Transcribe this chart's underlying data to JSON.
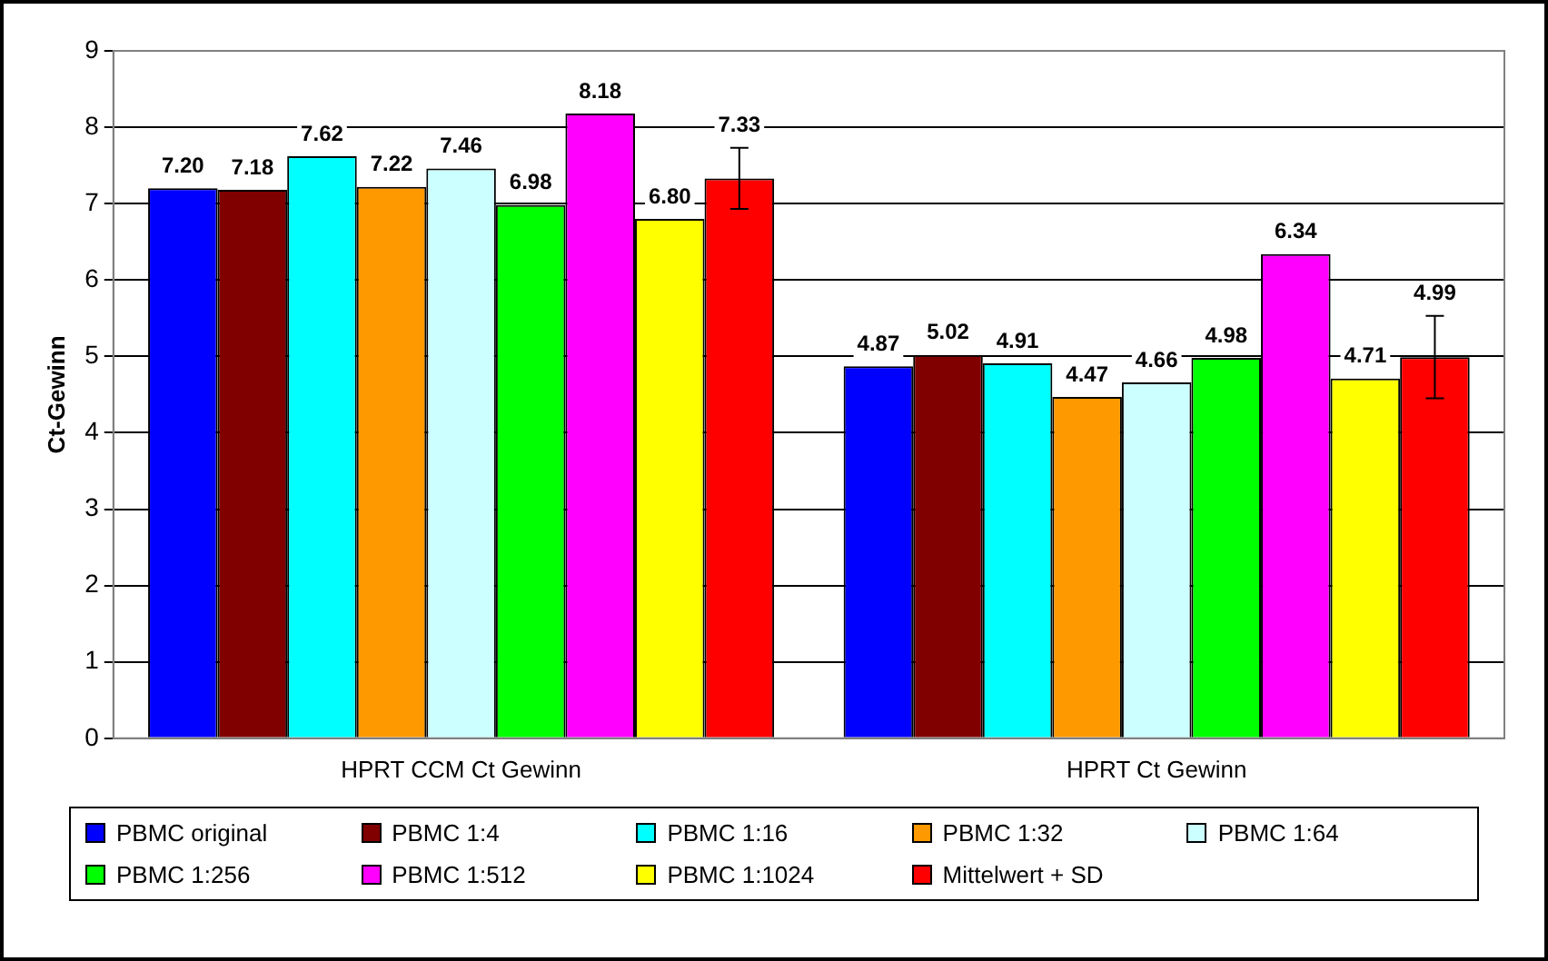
{
  "chart_data": {
    "type": "bar",
    "ylabel": "Ct-Gewinn",
    "categories": [
      "HPRT CCM Ct Gewinn",
      "HPRT Ct Gewinn"
    ],
    "series": [
      {
        "name": "PBMC original",
        "color": "#0000ff",
        "values": [
          7.2,
          4.87
        ],
        "value_labels": [
          "7.20",
          "4.87"
        ]
      },
      {
        "name": "PBMC 1:4",
        "color": "#800000",
        "values": [
          7.18,
          5.02
        ],
        "value_labels": [
          "7.18",
          "5.02"
        ]
      },
      {
        "name": "PBMC 1:16",
        "color": "#00ffff",
        "values": [
          7.62,
          4.91
        ],
        "value_labels": [
          "7.62",
          "4.91"
        ]
      },
      {
        "name": "PBMC 1:32",
        "color": "#ff9900",
        "values": [
          7.22,
          4.47
        ],
        "value_labels": [
          "7.22",
          "4.47"
        ]
      },
      {
        "name": "PBMC 1:64",
        "color": "#ccffff",
        "values": [
          7.46,
          4.66
        ],
        "value_labels": [
          "7.46",
          "4.66"
        ]
      },
      {
        "name": "PBMC 1:256",
        "color": "#00ff00",
        "values": [
          6.98,
          4.98
        ],
        "value_labels": [
          "6.98",
          "4.98"
        ]
      },
      {
        "name": "PBMC 1:512",
        "color": "#ff00ff",
        "values": [
          8.18,
          6.34
        ],
        "value_labels": [
          "8.18",
          "6.34"
        ]
      },
      {
        "name": "PBMC 1:1024",
        "color": "#ffff00",
        "values": [
          6.8,
          4.71
        ],
        "value_labels": [
          "6.80",
          "4.71"
        ]
      },
      {
        "name": "Mittelwert + SD",
        "color": "#ff0000",
        "values": [
          7.33,
          4.99
        ],
        "errors": [
          0.4,
          0.54
        ],
        "value_labels": [
          "7.33",
          "4.99"
        ]
      }
    ],
    "ylim": [
      0,
      9
    ],
    "yticks": [
      0,
      1,
      2,
      3,
      4,
      5,
      6,
      7,
      8,
      9
    ],
    "grid": "y",
    "legend": "bottom"
  }
}
